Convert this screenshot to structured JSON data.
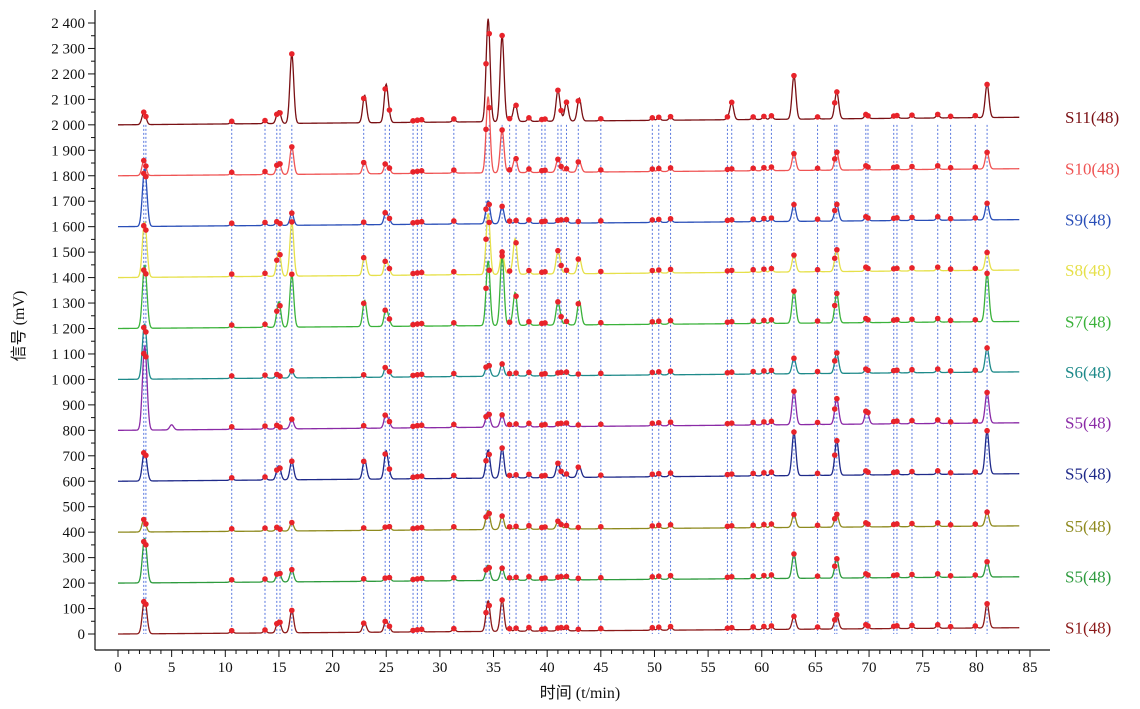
{
  "chart_data": {
    "type": "line",
    "title": "",
    "xlabel": "时间 (t/min)",
    "ylabel": "信号 (mV)",
    "xlim": [
      0,
      85
    ],
    "ylim": [
      -30,
      2430
    ],
    "x_ticks": [
      0,
      5,
      10,
      15,
      20,
      25,
      30,
      35,
      40,
      45,
      50,
      55,
      60,
      65,
      70,
      75,
      80,
      85
    ],
    "y_ticks": [
      0,
      100,
      200,
      300,
      400,
      500,
      600,
      700,
      800,
      900,
      1000,
      1100,
      1200,
      1300,
      1400,
      1500,
      1600,
      1700,
      1800,
      1900,
      2000,
      2100,
      2200,
      2300,
      2400
    ],
    "y_tick_labels": [
      "0",
      "100",
      "200",
      "300",
      "400",
      "500",
      "600",
      "700",
      "800",
      "900",
      "1 000",
      "1 100",
      "1 200",
      "1 300",
      "1 400",
      "1 500",
      "1 600",
      "1 700",
      "1 800",
      "1 900",
      "2 000",
      "2 100",
      "2 200",
      "2 300",
      "2 400"
    ],
    "grid": false,
    "marker_color": "#e8232a",
    "guide_color": "#3a5fd9",
    "series": [
      {
        "name": "S1(48)",
        "offset": 0,
        "color": "#8b1a1a",
        "end": 25,
        "peaks": [
          [
            2.4,
            85
          ],
          [
            2.6,
            60
          ],
          [
            16.2,
            80
          ],
          [
            34.5,
            110
          ],
          [
            35.8,
            115
          ],
          [
            23.0,
            30
          ],
          [
            25.0,
            35
          ],
          [
            63.0,
            45
          ],
          [
            67.0,
            40
          ],
          [
            81.0,
            85
          ],
          [
            15.0,
            40
          ]
        ]
      },
      {
        "name": "S5(48)",
        "offset": 200,
        "color": "#2e9b3e",
        "end": 225,
        "peaks": [
          [
            2.4,
            110
          ],
          [
            2.6,
            80
          ],
          [
            16.2,
            40
          ],
          [
            34.5,
            50
          ],
          [
            35.8,
            40
          ],
          [
            63.0,
            90
          ],
          [
            67.0,
            60
          ],
          [
            81.0,
            50
          ],
          [
            15.0,
            30
          ]
        ]
      },
      {
        "name": "S5(48)",
        "offset": 400,
        "color": "#8e8a1e",
        "end": 425,
        "peaks": [
          [
            2.4,
            40
          ],
          [
            16.2,
            25
          ],
          [
            34.5,
            65
          ],
          [
            35.8,
            45
          ],
          [
            63.0,
            45
          ],
          [
            67.0,
            35
          ],
          [
            81.0,
            45
          ],
          [
            41.0,
            20
          ]
        ]
      },
      {
        "name": "S5(48)",
        "offset": 600,
        "color": "#1f2a8a",
        "end": 630,
        "peaks": [
          [
            2.4,
            75
          ],
          [
            2.6,
            50
          ],
          [
            16.2,
            65
          ],
          [
            23.0,
            70
          ],
          [
            25.0,
            100
          ],
          [
            34.5,
            100
          ],
          [
            35.8,
            110
          ],
          [
            41.0,
            45
          ],
          [
            43.0,
            40
          ],
          [
            63.0,
            165
          ],
          [
            67.0,
            120
          ],
          [
            81.0,
            160
          ],
          [
            15.0,
            45
          ]
        ]
      },
      {
        "name": "S5(48)",
        "offset": 800,
        "color": "#8a2aa6",
        "end": 830,
        "peaks": [
          [
            2.4,
            200
          ],
          [
            2.6,
            170
          ],
          [
            5.0,
            20
          ],
          [
            16.2,
            30
          ],
          [
            25.0,
            45
          ],
          [
            34.5,
            50
          ],
          [
            35.8,
            40
          ],
          [
            63.0,
            125
          ],
          [
            67.0,
            85
          ],
          [
            81.0,
            110
          ],
          [
            69.8,
            40
          ]
        ]
      },
      {
        "name": "S6(48)",
        "offset": 1000,
        "color": "#1e8a8a",
        "end": 1030,
        "peaks": [
          [
            2.4,
            140
          ],
          [
            2.6,
            100
          ],
          [
            16.2,
            20
          ],
          [
            25.0,
            30
          ],
          [
            34.5,
            40
          ],
          [
            35.8,
            40
          ],
          [
            63.0,
            55
          ],
          [
            67.0,
            65
          ],
          [
            81.0,
            85
          ]
        ]
      },
      {
        "name": "S7(48)",
        "offset": 1200,
        "color": "#3bb23b",
        "end": 1228,
        "peaks": [
          [
            2.4,
            155
          ],
          [
            2.6,
            120
          ],
          [
            16.2,
            200
          ],
          [
            15.0,
            90
          ],
          [
            23.0,
            95
          ],
          [
            25.0,
            60
          ],
          [
            34.5,
            245
          ],
          [
            35.8,
            265
          ],
          [
            37.0,
            120
          ],
          [
            41.0,
            80
          ],
          [
            43.0,
            90
          ],
          [
            63.0,
            120
          ],
          [
            67.0,
            100
          ],
          [
            81.0,
            180
          ]
        ]
      },
      {
        "name": "S8(48)",
        "offset": 1400,
        "color": "#e6e04a",
        "end": 1430,
        "peaks": [
          [
            2.4,
            140
          ],
          [
            2.6,
            100
          ],
          [
            15.0,
            90
          ],
          [
            16.2,
            205
          ],
          [
            23.0,
            70
          ],
          [
            25.0,
            50
          ],
          [
            34.5,
            230
          ],
          [
            35.8,
            80
          ],
          [
            37.0,
            130
          ],
          [
            41.0,
            80
          ],
          [
            43.0,
            60
          ],
          [
            63.0,
            60
          ],
          [
            67.0,
            70
          ],
          [
            81.0,
            60
          ]
        ]
      },
      {
        "name": "S9(48)",
        "offset": 1600,
        "color": "#2a4fb8",
        "end": 1628,
        "peaks": [
          [
            2.4,
            140
          ],
          [
            2.6,
            110
          ],
          [
            16.2,
            40
          ],
          [
            25.0,
            40
          ],
          [
            34.5,
            80
          ],
          [
            35.8,
            60
          ],
          [
            63.0,
            60
          ],
          [
            67.0,
            50
          ],
          [
            81.0,
            55
          ]
        ]
      },
      {
        "name": "S10(48)",
        "offset": 1800,
        "color": "#ef5454",
        "end": 1828,
        "peaks": [
          [
            2.4,
            50
          ],
          [
            16.2,
            100
          ],
          [
            15.0,
            40
          ],
          [
            23.0,
            40
          ],
          [
            25.0,
            30
          ],
          [
            34.5,
            290
          ],
          [
            35.8,
            160
          ],
          [
            37.0,
            50
          ],
          [
            41.0,
            40
          ],
          [
            43.0,
            40
          ],
          [
            63.0,
            60
          ],
          [
            67.0,
            55
          ],
          [
            81.0,
            55
          ]
        ]
      },
      {
        "name": "S11(48)",
        "offset": 2000,
        "color": "#7a1014",
        "end": 2030,
        "peaks": [
          [
            2.4,
            40
          ],
          [
            16.2,
            265
          ],
          [
            15.0,
            40
          ],
          [
            23.0,
            100
          ],
          [
            25.0,
            140
          ],
          [
            34.5,
            395
          ],
          [
            35.8,
            330
          ],
          [
            37.0,
            60
          ],
          [
            41.0,
            110
          ],
          [
            41.8,
            60
          ],
          [
            43.0,
            85
          ],
          [
            57.2,
            60
          ],
          [
            63.0,
            165
          ],
          [
            67.0,
            90
          ],
          [
            81.0,
            120
          ]
        ]
      }
    ],
    "reference_peaks_min": [
      2.4,
      2.6,
      10.6,
      13.7,
      14.8,
      15.1,
      16.2,
      22.9,
      24.9,
      25.3,
      27.5,
      27.9,
      28.3,
      31.3,
      34.3,
      34.6,
      35.8,
      36.5,
      37.1,
      38.3,
      39.5,
      39.8,
      41.0,
      41.3,
      41.8,
      42.9,
      45.0,
      49.8,
      50.4,
      51.5,
      56.8,
      57.2,
      59.2,
      60.2,
      60.9,
      63.0,
      65.2,
      66.8,
      67.0,
      69.7,
      69.9,
      72.3,
      72.6,
      74.0,
      76.4,
      77.6,
      79.9,
      81.0
    ]
  }
}
